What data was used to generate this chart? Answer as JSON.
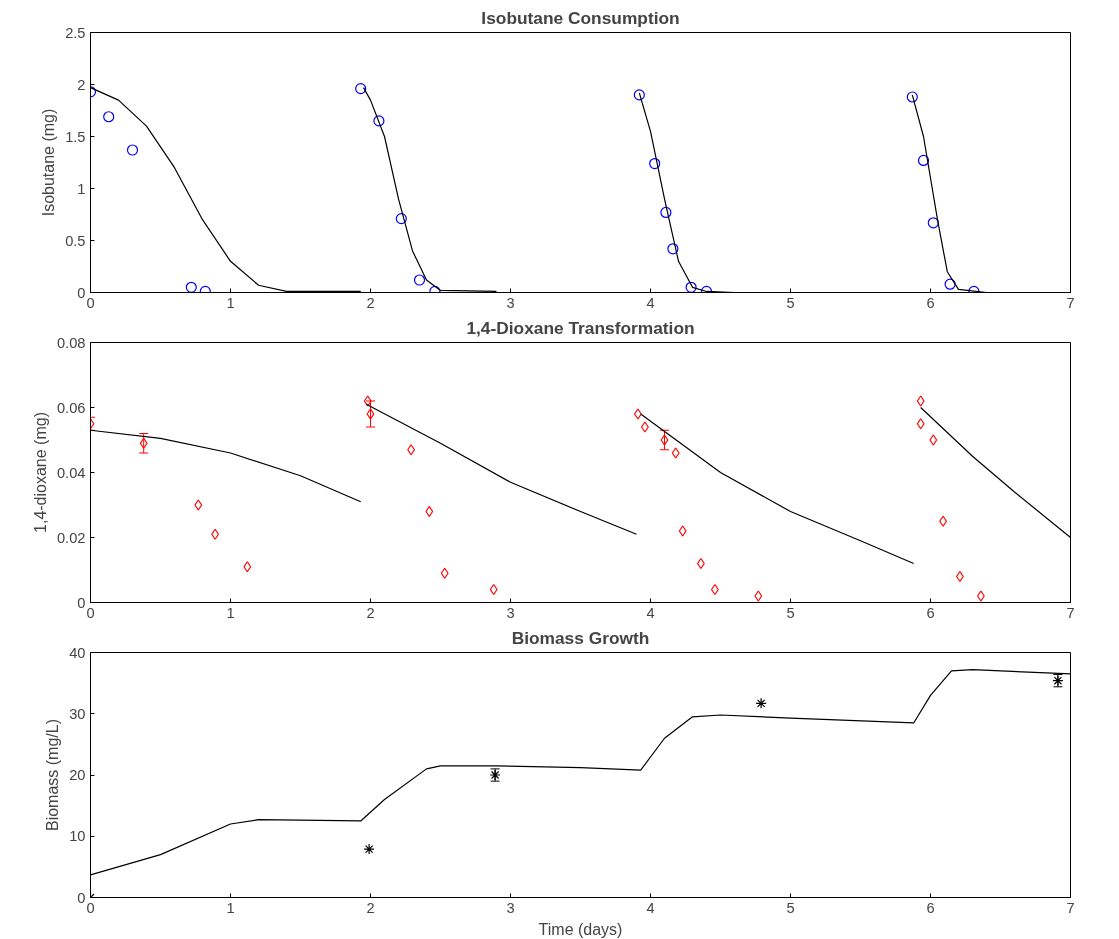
{
  "chart_data": [
    {
      "type": "scatter",
      "title": "Isobutane Consumption",
      "ylabel": "Isobutane (mg)",
      "xlim": [
        0,
        7
      ],
      "ylim": [
        0,
        2.5
      ],
      "xticks": [
        0,
        1,
        2,
        3,
        4,
        5,
        6,
        7
      ],
      "yticks": [
        0,
        0.5,
        1,
        1.5,
        2,
        2.5
      ],
      "grid": false,
      "series": [
        {
          "marker": "circle",
          "color": "#0000ff",
          "x": [
            0,
            0.13,
            0.3,
            0.72,
            0.82,
            1.93,
            2.06,
            2.22,
            2.35,
            2.46,
            3.92,
            4.03,
            4.11,
            4.16,
            4.29,
            4.4,
            5.87,
            5.95,
            6.02,
            6.14,
            6.31
          ],
          "values": [
            1.93,
            1.69,
            1.37,
            0.05,
            0.01,
            1.96,
            1.65,
            0.71,
            0.12,
            0.01,
            1.9,
            1.24,
            0.77,
            0.42,
            0.05,
            0.01,
            1.88,
            1.27,
            0.67,
            0.08,
            0.01
          ]
        },
        {
          "type": "line",
          "color": "#000000",
          "x": [
            0,
            0.2,
            0.4,
            0.6,
            0.8,
            1.0,
            1.2,
            1.4,
            1.93
          ],
          "values": [
            1.97,
            1.85,
            1.6,
            1.2,
            0.7,
            0.3,
            0.07,
            0.01,
            0.01
          ]
        },
        {
          "type": "line",
          "color": "#000000",
          "x": [
            1.95,
            2.0,
            2.1,
            2.2,
            2.3,
            2.4,
            2.5,
            2.9
          ],
          "values": [
            1.97,
            1.85,
            1.5,
            0.9,
            0.4,
            0.12,
            0.02,
            0.01
          ]
        },
        {
          "type": "line",
          "color": "#000000",
          "x": [
            3.92,
            4.0,
            4.1,
            4.2,
            4.3,
            4.4,
            4.6
          ],
          "values": [
            1.92,
            1.55,
            0.9,
            0.3,
            0.05,
            0.01,
            0
          ]
        },
        {
          "type": "line",
          "color": "#000000",
          "x": [
            5.87,
            5.95,
            6.05,
            6.12,
            6.2,
            6.4
          ],
          "values": [
            1.9,
            1.5,
            0.7,
            0.2,
            0.03,
            0
          ]
        }
      ]
    },
    {
      "type": "scatter",
      "title": "1,4-Dioxane Transformation",
      "ylabel": "1,4-dioxane (mg)",
      "xlim": [
        0,
        7
      ],
      "ylim": [
        0,
        0.08
      ],
      "xticks": [
        0,
        1,
        2,
        3,
        4,
        5,
        6,
        7
      ],
      "yticks": [
        0,
        0.02,
        0.04,
        0.06,
        0.08
      ],
      "grid": false,
      "series": [
        {
          "marker": "diamond",
          "color": "#ff0000",
          "x": [
            0,
            0.38,
            0.77,
            0.89,
            1.12,
            1.98,
            2.0,
            2.29,
            2.42,
            2.53,
            2.88,
            3.91,
            3.96,
            4.1,
            4.18,
            4.23,
            4.36,
            4.46,
            4.77,
            5.93,
            5.93,
            6.02,
            6.09,
            6.21,
            6.36
          ],
          "values": [
            0.055,
            0.049,
            0.03,
            0.021,
            0.011,
            0.062,
            0.058,
            0.047,
            0.028,
            0.009,
            0.004,
            0.058,
            0.054,
            0.05,
            0.046,
            0.022,
            0.012,
            0.004,
            0.002,
            0.062,
            0.055,
            0.05,
            0.025,
            0.008,
            0.002
          ],
          "errors": [
            0.002,
            0.003,
            null,
            null,
            null,
            null,
            0.004,
            null,
            null,
            null,
            null,
            null,
            null,
            0.003,
            null,
            null,
            null,
            null,
            null,
            null,
            null,
            null,
            null,
            null,
            null
          ]
        },
        {
          "type": "line",
          "color": "#000000",
          "x": [
            0,
            0.5,
            1.0,
            1.5,
            1.93
          ],
          "values": [
            0.053,
            0.0505,
            0.046,
            0.039,
            0.031
          ]
        },
        {
          "type": "line",
          "color": "#000000",
          "x": [
            1.97,
            2.5,
            3.0,
            3.5,
            3.9
          ],
          "values": [
            0.061,
            0.049,
            0.037,
            0.028,
            0.021
          ]
        },
        {
          "type": "line",
          "color": "#000000",
          "x": [
            3.93,
            4.5,
            5.0,
            5.5,
            5.88
          ],
          "values": [
            0.058,
            0.04,
            0.028,
            0.019,
            0.012
          ]
        },
        {
          "type": "line",
          "color": "#000000",
          "x": [
            5.93,
            6.3,
            6.6,
            7.0
          ],
          "values": [
            0.06,
            0.045,
            0.034,
            0.02
          ]
        }
      ]
    },
    {
      "type": "scatter",
      "title": "Biomass Growth",
      "xlabel": "Time (days)",
      "ylabel": "Biomass (mg/L)",
      "xlim": [
        0,
        7
      ],
      "ylim": [
        0,
        40
      ],
      "xticks": [
        0,
        1,
        2,
        3,
        4,
        5,
        6,
        7
      ],
      "yticks": [
        0,
        10,
        20,
        30,
        40
      ],
      "grid": false,
      "series": [
        {
          "marker": "cross",
          "color": "#000000",
          "x": [
            0,
            1.99,
            2.89,
            4.79,
            6.91
          ],
          "values": [
            0,
            7.9,
            20.0,
            31.7,
            35.4
          ],
          "errors": [
            null,
            null,
            1,
            null,
            1
          ]
        },
        {
          "type": "line",
          "color": "#000000",
          "x": [
            0,
            0.5,
            1.0,
            1.2,
            1.93,
            2.1,
            2.4,
            2.5,
            2.9,
            3.5,
            3.93,
            4.1,
            4.3,
            4.5,
            5.0,
            5.88,
            6.0,
            6.15,
            6.3,
            7.0
          ],
          "values": [
            3.7,
            7,
            12,
            12.7,
            12.5,
            16,
            21,
            21.5,
            21.5,
            21.2,
            20.8,
            26,
            29.5,
            29.8,
            29.3,
            28.5,
            33,
            37,
            37.2,
            36.5
          ]
        }
      ]
    }
  ]
}
